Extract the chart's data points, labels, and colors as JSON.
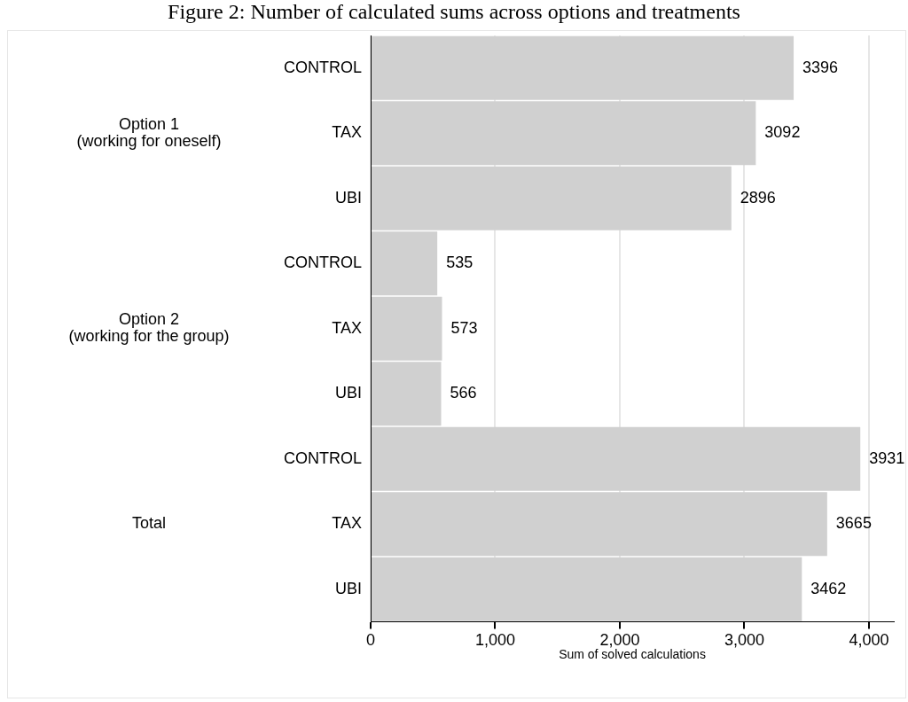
{
  "chart_data": {
    "type": "bar",
    "orientation": "horizontal",
    "title": "Figure 2: Number of calculated sums across options and treatments",
    "xlabel": "Sum of solved calculations",
    "categories": [
      "CONTROL",
      "TAX",
      "UBI",
      "CONTROL",
      "TAX",
      "UBI",
      "CONTROL",
      "TAX",
      "UBI"
    ],
    "values": [
      3396,
      3092,
      2896,
      535,
      573,
      566,
      3931,
      3665,
      3462
    ],
    "color": "#d0d0d0",
    "data_labels": true,
    "grid": "x",
    "xlim": [
      0,
      4200
    ],
    "xticks": [
      {
        "value": 0,
        "label": "0"
      },
      {
        "value": 1000,
        "label": "1,000"
      },
      {
        "value": 2000,
        "label": "2,000"
      },
      {
        "value": 3000,
        "label": "3,000"
      },
      {
        "value": 4000,
        "label": "4,000"
      }
    ],
    "annotations": [
      "Option 1\n(working for oneself)",
      "Option 2\n(working for the group)",
      "Total"
    ],
    "legend": false
  }
}
